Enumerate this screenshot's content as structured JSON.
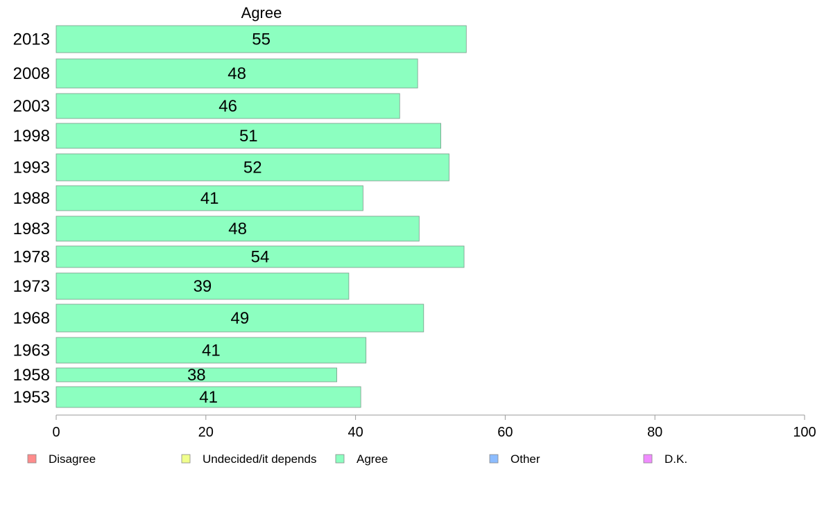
{
  "chart_data": {
    "type": "bar",
    "orientation": "horizontal",
    "panel_title": "Agree",
    "categories": [
      "2013",
      "2008",
      "2003",
      "1998",
      "1993",
      "1988",
      "1983",
      "1978",
      "1973",
      "1968",
      "1963",
      "1958",
      "1953"
    ],
    "values": [
      55,
      48,
      46,
      51,
      52,
      41,
      48,
      54,
      39,
      49,
      41,
      38,
      41
    ],
    "bar_lengths": [
      54.8,
      48.3,
      45.9,
      51.4,
      52.5,
      41.0,
      48.5,
      54.5,
      39.1,
      49.1,
      41.4,
      37.5,
      40.7
    ],
    "xlim": [
      0,
      100
    ],
    "xticks": [
      "0",
      "20",
      "40",
      "60",
      "80",
      "100"
    ],
    "grid": false,
    "legend_position": "bottom",
    "bar_color": "#8cffc0",
    "legend": [
      {
        "label": "Disagree",
        "color": "#ff8c8c"
      },
      {
        "label": "Undecided/it depends",
        "color": "#f0ff8c"
      },
      {
        "label": "Agree",
        "color": "#8cffc0"
      },
      {
        "label": "Other",
        "color": "#8cbcff"
      },
      {
        "label": "D.K.",
        "color": "#f08cff"
      }
    ]
  }
}
